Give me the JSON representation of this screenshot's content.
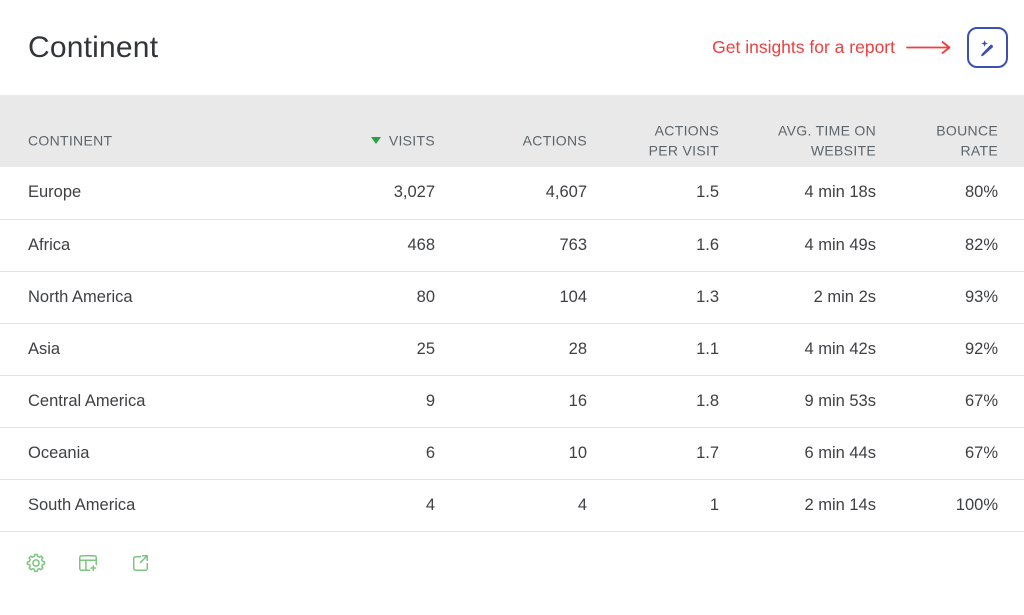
{
  "header": {
    "title": "Continent"
  },
  "annotation": {
    "label": "Get insights for a report",
    "color": "#f23e3e"
  },
  "insights_button": {
    "icon": "ai-pen-icon",
    "accent_color": "#3c50b3"
  },
  "table": {
    "sort_arrow_color": "#28a048",
    "sorted_column": "VISITS",
    "sort_direction": "desc",
    "columns": [
      {
        "label": "CONTINENT"
      },
      {
        "label": "VISITS"
      },
      {
        "label": "ACTIONS"
      },
      {
        "label": "ACTIONS\nPER VISIT"
      },
      {
        "label": "AVG. TIME ON\nWEBSITE"
      },
      {
        "label": "BOUNCE\nRATE"
      }
    ],
    "rows": [
      {
        "continent": "Europe",
        "visits": "3,027",
        "actions": "4,607",
        "actions_per_visit": "1.5",
        "avg_time_on_website": "4 min 18s",
        "bounce_rate": "80%"
      },
      {
        "continent": "Africa",
        "visits": "468",
        "actions": "763",
        "actions_per_visit": "1.6",
        "avg_time_on_website": "4 min 49s",
        "bounce_rate": "82%"
      },
      {
        "continent": "North America",
        "visits": "80",
        "actions": "104",
        "actions_per_visit": "1.3",
        "avg_time_on_website": "2 min 2s",
        "bounce_rate": "93%"
      },
      {
        "continent": "Asia",
        "visits": "25",
        "actions": "28",
        "actions_per_visit": "1.1",
        "avg_time_on_website": "4 min 42s",
        "bounce_rate": "92%"
      },
      {
        "continent": "Central America",
        "visits": "9",
        "actions": "16",
        "actions_per_visit": "1.8",
        "avg_time_on_website": "9 min 53s",
        "bounce_rate": "67%"
      },
      {
        "continent": "Oceania",
        "visits": "6",
        "actions": "10",
        "actions_per_visit": "1.7",
        "avg_time_on_website": "6 min 44s",
        "bounce_rate": "67%"
      },
      {
        "continent": "South America",
        "visits": "4",
        "actions": "4",
        "actions_per_visit": "1",
        "avg_time_on_website": "2 min 14s",
        "bounce_rate": "100%"
      }
    ]
  },
  "footer": {
    "icon_color": "#7cc57e",
    "icons": [
      {
        "name": "settings-icon"
      },
      {
        "name": "add-column-icon"
      },
      {
        "name": "export-icon"
      }
    ]
  }
}
